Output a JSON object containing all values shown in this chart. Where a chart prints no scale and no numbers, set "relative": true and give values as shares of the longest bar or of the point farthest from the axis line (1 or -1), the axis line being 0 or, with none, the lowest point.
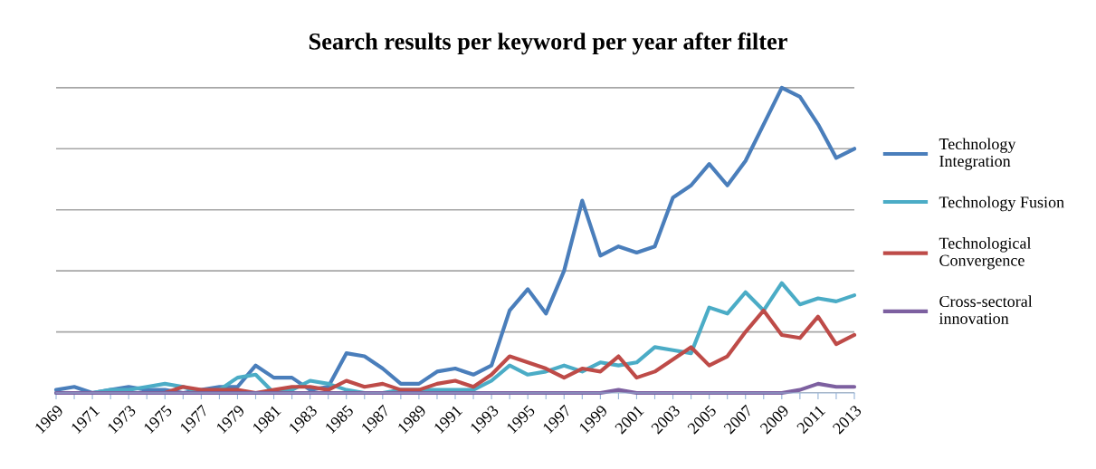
{
  "chart_data": {
    "type": "line",
    "title": "Search results per keyword per year after filter",
    "relative": true,
    "x": [
      1969,
      1970,
      1971,
      1972,
      1973,
      1974,
      1975,
      1976,
      1977,
      1978,
      1979,
      1980,
      1981,
      1982,
      1983,
      1984,
      1985,
      1986,
      1987,
      1988,
      1989,
      1990,
      1991,
      1992,
      1993,
      1994,
      1995,
      1996,
      1997,
      1998,
      1999,
      2000,
      2001,
      2002,
      2003,
      2004,
      2005,
      2006,
      2007,
      2008,
      2009,
      2010,
      2011,
      2012,
      2013
    ],
    "xlim": [
      1969,
      2013
    ],
    "xticks": [
      1969,
      {
        "value": 1970,
        "label": null
      },
      1971,
      {
        "value": 1972,
        "label": null
      },
      1973,
      {
        "value": 1974,
        "label": null
      },
      1975,
      {
        "value": 1976,
        "label": null
      },
      1977,
      {
        "value": 1978,
        "label": null
      },
      1979,
      {
        "value": 1980,
        "label": null
      },
      1981,
      {
        "value": 1982,
        "label": null
      },
      1983,
      {
        "value": 1984,
        "label": null
      },
      1985,
      {
        "value": 1986,
        "label": null
      },
      1987,
      {
        "value": 1988,
        "label": null
      },
      1989,
      {
        "value": 1990,
        "label": null
      },
      1991,
      {
        "value": 1992,
        "label": null
      },
      1993,
      {
        "value": 1994,
        "label": null
      },
      1995,
      {
        "value": 1996,
        "label": null
      },
      1997,
      {
        "value": 1998,
        "label": null
      },
      1999,
      {
        "value": 2000,
        "label": null
      },
      2001,
      {
        "value": 2002,
        "label": null
      },
      2003,
      {
        "value": 2004,
        "label": null
      },
      2005,
      {
        "value": 2006,
        "label": null
      },
      2007,
      {
        "value": 2008,
        "label": null
      },
      2009,
      {
        "value": 2010,
        "label": null
      },
      2011,
      {
        "value": 2012,
        "label": null
      },
      2013
    ],
    "tick_labels": "x",
    "grid": "y",
    "legend": "right",
    "marker": "none",
    "line_style": "solid",
    "series": [
      {
        "name": "Technology Integration",
        "color": "#4a7ebb",
        "values": [
          0.01,
          0.02,
          0.0,
          0.01,
          0.02,
          0.01,
          0.01,
          0.0,
          0.01,
          0.02,
          0.02,
          0.09,
          0.05,
          0.05,
          0.01,
          0.02,
          0.13,
          0.12,
          0.08,
          0.03,
          0.03,
          0.07,
          0.08,
          0.06,
          0.09,
          0.27,
          0.34,
          0.26,
          0.4,
          0.63,
          0.45,
          0.48,
          0.46,
          0.48,
          0.64,
          0.68,
          0.75,
          0.68,
          0.76,
          0.88,
          1.0,
          0.97,
          0.88,
          0.77,
          0.8
        ]
      },
      {
        "name": "Technology Fusion",
        "color": "#4bacc6",
        "values": [
          0.0,
          0.0,
          0.0,
          0.01,
          0.01,
          0.02,
          0.03,
          0.02,
          0.0,
          0.01,
          0.05,
          0.06,
          0.0,
          0.01,
          0.04,
          0.03,
          0.01,
          0.0,
          0.0,
          0.01,
          0.01,
          0.01,
          0.01,
          0.01,
          0.04,
          0.09,
          0.06,
          0.07,
          0.09,
          0.07,
          0.1,
          0.09,
          0.1,
          0.15,
          0.14,
          0.13,
          0.28,
          0.26,
          0.33,
          0.27,
          0.36,
          0.29,
          0.31,
          0.3,
          0.32
        ]
      },
      {
        "name": "Technological Convergence",
        "color": "#be4b48",
        "values": [
          null,
          null,
          null,
          null,
          null,
          0.0,
          0.0,
          0.02,
          0.01,
          0.01,
          0.01,
          0.0,
          0.01,
          0.02,
          0.02,
          0.01,
          0.04,
          0.02,
          0.03,
          0.01,
          0.01,
          0.03,
          0.04,
          0.02,
          0.06,
          0.12,
          0.1,
          0.08,
          0.05,
          0.08,
          0.07,
          0.12,
          0.05,
          0.07,
          0.11,
          0.15,
          0.09,
          0.12,
          0.2,
          0.27,
          0.19,
          0.18,
          0.25,
          0.16,
          0.19
        ]
      },
      {
        "name": "Cross-sectoral innovation",
        "color": "#7d60a0",
        "values": [
          0,
          0,
          0,
          0,
          0,
          0,
          0,
          0,
          0,
          0,
          0,
          0,
          0,
          0,
          0,
          0,
          0,
          0,
          0,
          0,
          0,
          0,
          0,
          0,
          0,
          0,
          0,
          0,
          0,
          0,
          0,
          0.01,
          0,
          0,
          0,
          0,
          0,
          0,
          0,
          0,
          0,
          0.01,
          0.03,
          0.02,
          0.02
        ]
      }
    ]
  }
}
